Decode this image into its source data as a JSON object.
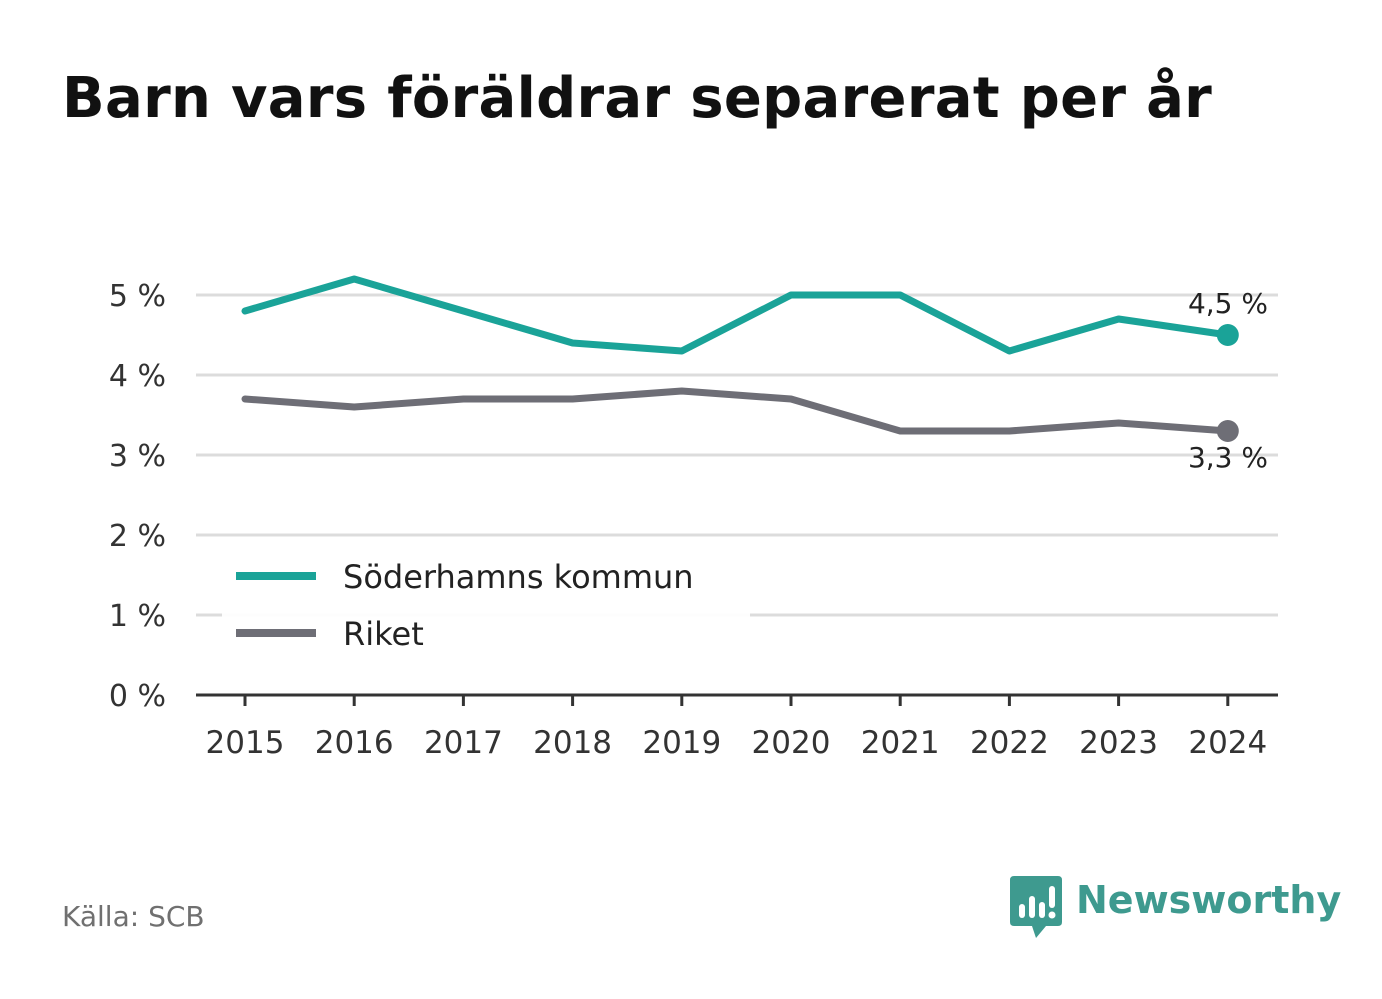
{
  "title": "Barn vars föräldrar separerat per år",
  "source": "Källa: SCB",
  "brand": {
    "name": "Newsworthy",
    "icon": "newsworthy-logo-icon",
    "color": "#3e9a8f"
  },
  "chart_data": {
    "type": "line",
    "title": "Barn vars föräldrar separerat per år",
    "x": [
      "2015",
      "2016",
      "2017",
      "2018",
      "2019",
      "2020",
      "2021",
      "2022",
      "2023",
      "2024"
    ],
    "yticks": [
      0,
      1,
      2,
      3,
      4,
      5
    ],
    "ytick_labels": [
      "0 %",
      "1 %",
      "2 %",
      "3 %",
      "4 %",
      "5 %"
    ],
    "ylim": [
      0,
      5.5
    ],
    "grid": true,
    "legend_position": "bottom-left",
    "series": [
      {
        "name": "Söderhamns kommun",
        "color": "#1aa398",
        "values": [
          4.8,
          5.2,
          4.8,
          4.4,
          4.3,
          5.0,
          5.0,
          4.3,
          4.7,
          4.5
        ],
        "end_label": "4,5 %"
      },
      {
        "name": "Riket",
        "color": "#6e6e76",
        "values": [
          3.7,
          3.6,
          3.7,
          3.7,
          3.8,
          3.7,
          3.3,
          3.3,
          3.4,
          3.3
        ],
        "end_label": "3,3 %"
      }
    ]
  }
}
